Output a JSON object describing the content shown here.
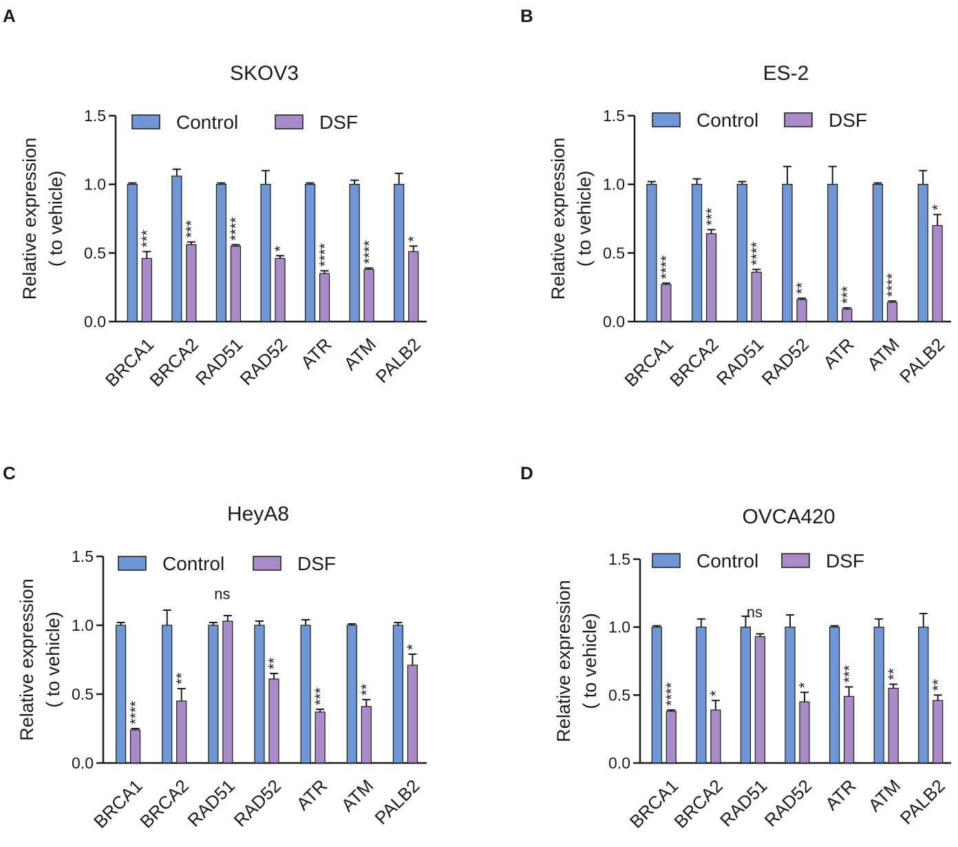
{
  "colors": {
    "control": "#6f97d5",
    "dsf": "#a98bc7",
    "axis": "#1a1a1a"
  },
  "chart_data": [
    {
      "panel": "A",
      "type": "bar",
      "title": "SKOV3",
      "ylabel": [
        "Relative expression",
        "( to vehicle)"
      ],
      "xlabel": "",
      "ylim": [
        0,
        1.5
      ],
      "yticks": [
        "0.0",
        "0.5",
        "1.0",
        "1.5"
      ],
      "legend": [
        "Control",
        "DSF"
      ],
      "legend_position": "top",
      "categories": [
        "BRCA1",
        "BRCA2",
        "RAD51",
        "RAD52",
        "ATR",
        "ATM",
        "PALB2"
      ],
      "series": [
        {
          "name": "Control",
          "values": [
            1.0,
            1.06,
            1.0,
            1.0,
            1.0,
            1.0,
            1.0
          ],
          "errors": [
            0.01,
            0.05,
            0.01,
            0.1,
            0.01,
            0.03,
            0.08
          ]
        },
        {
          "name": "DSF",
          "values": [
            0.46,
            0.56,
            0.55,
            0.46,
            0.35,
            0.38,
            0.51
          ],
          "errors": [
            0.05,
            0.02,
            0.01,
            0.02,
            0.02,
            0.01,
            0.04
          ]
        }
      ],
      "significance": [
        "***",
        "***",
        "****",
        "*",
        "****",
        "****",
        "*"
      ]
    },
    {
      "panel": "B",
      "type": "bar",
      "title": "ES-2",
      "ylabel": [
        "Relative expression",
        "( to vehicle)"
      ],
      "xlabel": "",
      "ylim": [
        0,
        1.5
      ],
      "yticks": [
        "0.0",
        "0.5",
        "1.0",
        "1.5"
      ],
      "legend": [
        "Control",
        "DSF"
      ],
      "legend_position": "top",
      "categories": [
        "BRCA1",
        "BRCA2",
        "RAD51",
        "RAD52",
        "ATR",
        "ATM",
        "PALB2"
      ],
      "series": [
        {
          "name": "Control",
          "values": [
            1.0,
            1.0,
            1.0,
            1.0,
            1.0,
            1.0,
            1.0
          ],
          "errors": [
            0.02,
            0.04,
            0.02,
            0.13,
            0.13,
            0.01,
            0.1
          ]
        },
        {
          "name": "DSF",
          "values": [
            0.27,
            0.64,
            0.36,
            0.16,
            0.09,
            0.14,
            0.7
          ],
          "errors": [
            0.01,
            0.03,
            0.02,
            0.01,
            0.01,
            0.01,
            0.08
          ]
        }
      ],
      "significance": [
        "****",
        "***",
        "****",
        "**",
        "***",
        "****",
        "*"
      ]
    },
    {
      "panel": "C",
      "type": "bar",
      "title": "HeyA8",
      "ylabel": [
        "Relative expression",
        "( to vehicle)"
      ],
      "xlabel": "",
      "ylim": [
        0,
        1.5
      ],
      "yticks": [
        "0.0",
        "0.5",
        "1.0",
        "1.5"
      ],
      "legend": [
        "Control",
        "DSF"
      ],
      "legend_position": "top",
      "categories": [
        "BRCA1",
        "BRCA2",
        "RAD51",
        "RAD52",
        "ATR",
        "ATM",
        "PALB2"
      ],
      "series": [
        {
          "name": "Control",
          "values": [
            1.0,
            1.0,
            1.0,
            1.0,
            1.0,
            1.0,
            1.0
          ],
          "errors": [
            0.02,
            0.11,
            0.02,
            0.03,
            0.04,
            0.01,
            0.02
          ]
        },
        {
          "name": "DSF",
          "values": [
            0.24,
            0.45,
            1.03,
            0.61,
            0.37,
            0.41,
            0.71
          ],
          "errors": [
            0.01,
            0.09,
            0.04,
            0.04,
            0.02,
            0.05,
            0.08
          ]
        }
      ],
      "significance": [
        "****",
        "**",
        "ns",
        "**",
        "***",
        "**",
        "*"
      ]
    },
    {
      "panel": "D",
      "type": "bar",
      "title": "OVCA420",
      "ylabel": [
        "Relative expression",
        "( to vehicle)"
      ],
      "xlabel": "",
      "ylim": [
        0,
        1.5
      ],
      "yticks": [
        "0.0",
        "0.5",
        "1.0",
        "1.5"
      ],
      "legend": [
        "Control",
        "DSF"
      ],
      "legend_position": "top",
      "categories": [
        "BRCA1",
        "BRCA2",
        "RAD51",
        "RAD52",
        "ATR",
        "ATM",
        "PALB2"
      ],
      "series": [
        {
          "name": "Control",
          "values": [
            1.0,
            1.0,
            1.0,
            1.0,
            1.0,
            1.0,
            1.0
          ],
          "errors": [
            0.01,
            0.06,
            0.08,
            0.09,
            0.01,
            0.06,
            0.1
          ]
        },
        {
          "name": "DSF",
          "values": [
            0.38,
            0.39,
            0.93,
            0.45,
            0.49,
            0.55,
            0.46
          ],
          "errors": [
            0.01,
            0.07,
            0.02,
            0.07,
            0.07,
            0.03,
            0.04
          ]
        }
      ],
      "significance": [
        "****",
        "*",
        "ns",
        "*",
        "***",
        "**",
        "**"
      ]
    }
  ]
}
